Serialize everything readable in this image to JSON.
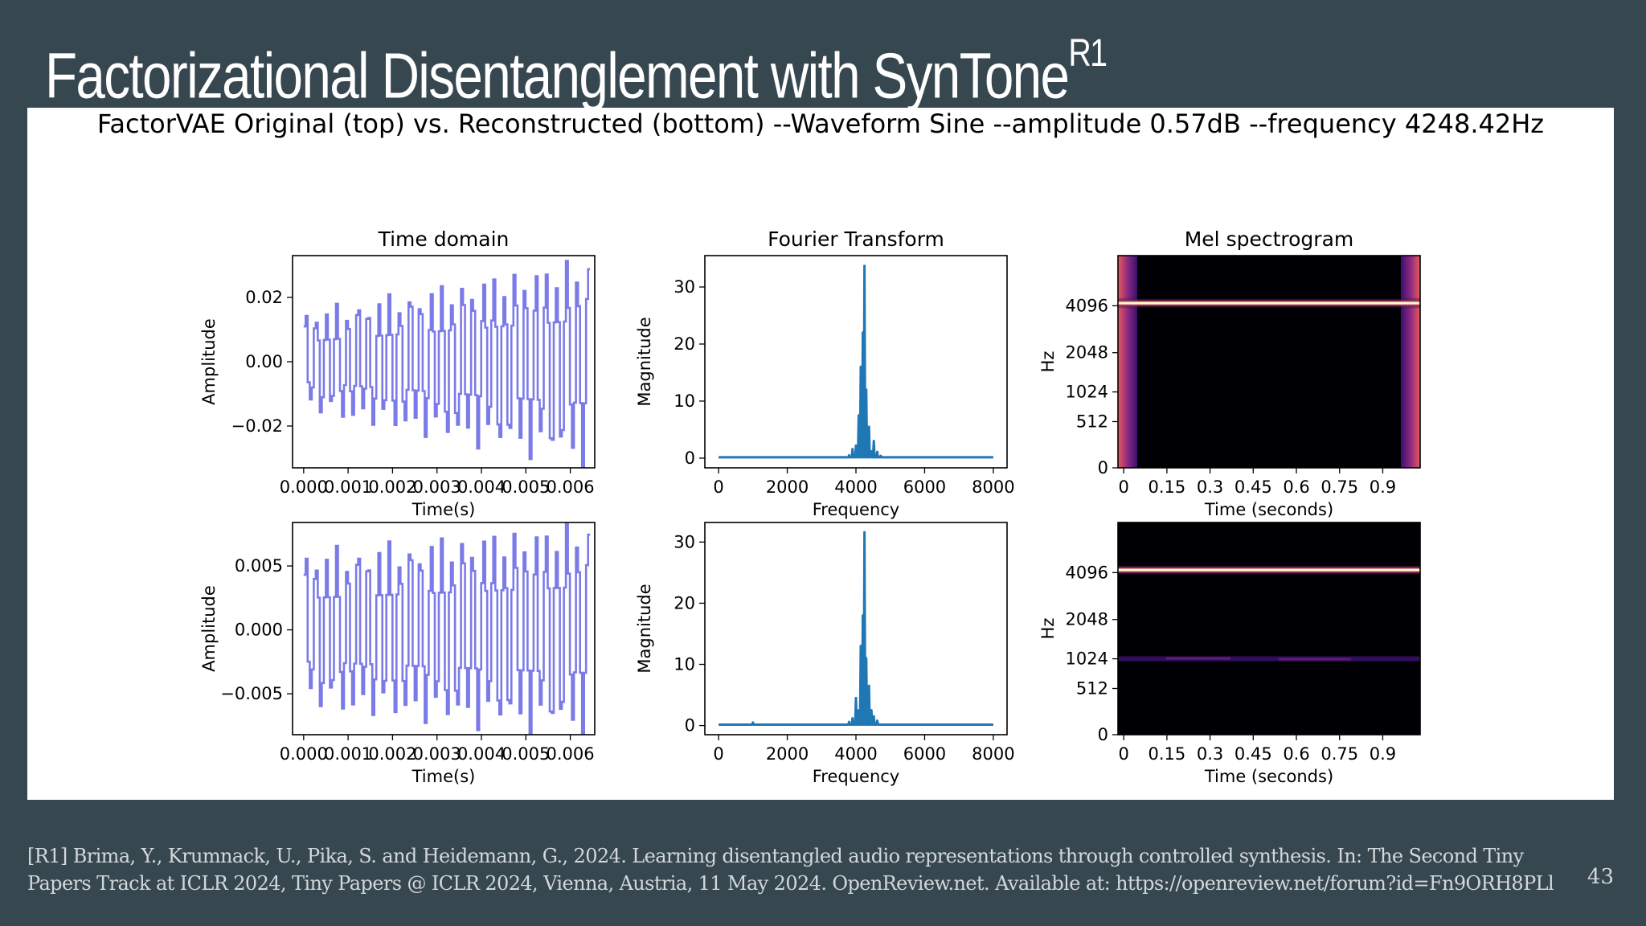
{
  "slide": {
    "title": "Factorizational Disentanglement with SynTone",
    "title_superscript": "R1",
    "footer_reference": "[R1] Brima, Y., Krumnack, U., Pika, S. and Heidemann, G., 2024. Learning disentangled audio representations through controlled synthesis. In: The Second Tiny Papers Track at ICLR 2024, Tiny Papers @ ICLR 2024, Vienna, Austria, 11 May 2024. OpenReview.net. Available at: https://openreview.net/forum?id=Fn9ORH8PLl",
    "page_number": "43"
  },
  "figure": {
    "suptitle": "FactorVAE Original (top) vs. Reconstructed (bottom) --Waveform Sine --amplitude 0.57dB --frequency 4248.42Hz"
  },
  "chart_data": [
    {
      "id": "time-original",
      "type": "line",
      "title": "Time domain",
      "xlabel": "Time(s)",
      "ylabel": "Amplitude",
      "xlim": [
        -0.00025,
        0.00655
      ],
      "ylim": [
        -0.033,
        0.033
      ],
      "xticks": [
        0,
        0.001,
        0.002,
        0.003,
        0.004,
        0.005,
        0.006
      ],
      "xtick_labels": [
        "0.000",
        "0.001",
        "0.002",
        "0.003",
        "0.004",
        "0.005",
        "0.006"
      ],
      "yticks": [
        0.02,
        0.0,
        -0.02
      ],
      "ytick_labels": [
        "0.02",
        "0.00",
        "−0.02"
      ],
      "color": "#7b7be8",
      "signal": {
        "frequency_hz": 4248.42,
        "samples_per_period": 5.19,
        "duration_s": 0.0064,
        "amplitude_start": 0.014,
        "amplitude_end": 0.029
      }
    },
    {
      "id": "fft-original",
      "type": "line",
      "title": "Fourier Transform",
      "xlabel": "Frequency",
      "ylabel": "Magnitude",
      "xlim": [
        -400,
        8400
      ],
      "ylim": [
        -1.7,
        35.5
      ],
      "xticks": [
        0,
        2000,
        4000,
        6000,
        8000
      ],
      "xtick_labels": [
        "0",
        "2000",
        "4000",
        "6000",
        "8000"
      ],
      "yticks": [
        0,
        10,
        20,
        30
      ],
      "ytick_labels": [
        "0",
        "10",
        "20",
        "30"
      ],
      "color": "#1f77b4",
      "peaks": [
        [
          3800,
          0.5
        ],
        [
          3900,
          1.6
        ],
        [
          4000,
          2.2
        ],
        [
          4080,
          7.5
        ],
        [
          4140,
          16
        ],
        [
          4200,
          22
        ],
        [
          4248,
          33.7
        ],
        [
          4300,
          12
        ],
        [
          4380,
          5.5
        ],
        [
          4450,
          1.2
        ],
        [
          4520,
          3.0
        ],
        [
          4620,
          1.1
        ],
        [
          4720,
          0.4
        ]
      ],
      "noise_floor": 0.15
    },
    {
      "id": "mel-original",
      "type": "heatmap",
      "title": "Mel spectrogram",
      "xlabel": "Time (seconds)",
      "ylabel": "Hz",
      "xlim": [
        -0.02,
        1.03
      ],
      "xticks": [
        0,
        0.15,
        0.3,
        0.45,
        0.6,
        0.75,
        0.9
      ],
      "xtick_labels": [
        "0",
        "0.15",
        "0.3",
        "0.45",
        "0.6",
        "0.75",
        "0.9"
      ],
      "yticks": [
        0,
        512,
        1024,
        2048,
        4096
      ],
      "ytick_labels": [
        "0",
        "512",
        "1024",
        "2048",
        "4096"
      ],
      "colormap": "magma",
      "tone_hz": 4248.42,
      "bright_edges": true
    },
    {
      "id": "time-reconstructed",
      "type": "line",
      "title": "",
      "xlabel": "Time(s)",
      "ylabel": "Amplitude",
      "xlim": [
        -0.00025,
        0.00655
      ],
      "ylim": [
        -0.0082,
        0.0084
      ],
      "xticks": [
        0,
        0.001,
        0.002,
        0.003,
        0.004,
        0.005,
        0.006
      ],
      "xtick_labels": [
        "0.000",
        "0.001",
        "0.002",
        "0.003",
        "0.004",
        "0.005",
        "0.006"
      ],
      "yticks": [
        0.005,
        0.0,
        -0.005
      ],
      "ytick_labels": [
        "0.005",
        "0.000",
        "−0.005"
      ],
      "color": "#7b7be8",
      "signal": {
        "frequency_hz": 4248.42,
        "samples_per_period": 5.19,
        "duration_s": 0.0064,
        "amplitude_start": 0.0055,
        "amplitude_end": 0.0075
      }
    },
    {
      "id": "fft-reconstructed",
      "type": "line",
      "title": "",
      "xlabel": "Frequency",
      "ylabel": "Magnitude",
      "xlim": [
        -400,
        8400
      ],
      "ylim": [
        -1.5,
        33.2
      ],
      "xticks": [
        0,
        2000,
        4000,
        6000,
        8000
      ],
      "xtick_labels": [
        "0",
        "2000",
        "4000",
        "6000",
        "8000"
      ],
      "yticks": [
        0,
        10,
        20,
        30
      ],
      "ytick_labels": [
        "0",
        "10",
        "20",
        "30"
      ],
      "color": "#1f77b4",
      "peaks": [
        [
          1000,
          0.5
        ],
        [
          3800,
          0.6
        ],
        [
          3900,
          1.2
        ],
        [
          4000,
          4.5
        ],
        [
          4080,
          2.5
        ],
        [
          4140,
          13
        ],
        [
          4200,
          18
        ],
        [
          4248,
          31.6
        ],
        [
          4300,
          11
        ],
        [
          4380,
          6.5
        ],
        [
          4450,
          2.5
        ],
        [
          4520,
          1.5
        ],
        [
          4620,
          0.8
        ]
      ],
      "noise_floor": 0.15
    },
    {
      "id": "mel-reconstructed",
      "type": "heatmap",
      "title": "",
      "xlabel": "Time (seconds)",
      "ylabel": "Hz",
      "xlim": [
        -0.02,
        1.03
      ],
      "xticks": [
        0,
        0.15,
        0.3,
        0.45,
        0.6,
        0.75,
        0.9
      ],
      "xtick_labels": [
        "0",
        "0.15",
        "0.3",
        "0.45",
        "0.6",
        "0.75",
        "0.9"
      ],
      "yticks": [
        0,
        512,
        1024,
        2048,
        4096
      ],
      "ytick_labels": [
        "0",
        "512",
        "1024",
        "2048",
        "4096"
      ],
      "colormap": "magma",
      "tone_hz": 4248.42,
      "secondary_band_hz": 1024,
      "bright_edges": false
    }
  ]
}
